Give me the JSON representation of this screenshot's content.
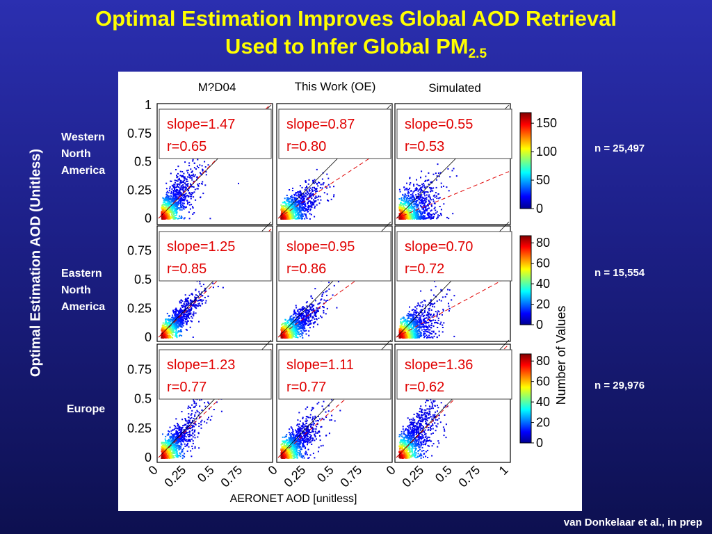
{
  "title": {
    "line1": "Optimal Estimation Improves Global AOD Retrieval",
    "line2_main": "Used to Infer Global PM",
    "line2_sub": "2.5"
  },
  "ylabel": "Optimal Estimation AOD (Unitless)",
  "colorbar_label": "Number of Values",
  "credit": "van Donkelaar et al., in prep",
  "accent_color": "#ffff00",
  "chart_data": {
    "type": "scatter",
    "title": "",
    "columns": [
      "M?D04",
      "This Work (OE)",
      "Simulated"
    ],
    "xlabel": "AERONET AOD [unitless]",
    "ylabel": "Optimal Estimation AOD (Unitless)",
    "xlim": [
      0,
      1
    ],
    "ylim": [
      0,
      1
    ],
    "x_ticks": [
      "0",
      "0.25",
      "0.5",
      "0.75"
    ],
    "x_ticks_last": "1",
    "rows": [
      {
        "region": [
          "Western",
          "North",
          "America"
        ],
        "n": "n = 25,497",
        "y_ticks": [
          "0",
          "0.25",
          "0.5",
          "0.75",
          "1"
        ],
        "colorbar_ticks": [
          "0",
          "50",
          "100",
          "150"
        ],
        "colorbar_max": 150,
        "panels": [
          {
            "slope": 1.47,
            "r": 0.65,
            "slope_label": "slope=1.47",
            "r_label": "r=0.65"
          },
          {
            "slope": 0.87,
            "r": 0.8,
            "slope_label": "slope=0.87",
            "r_label": "r=0.80"
          },
          {
            "slope": 0.55,
            "r": 0.53,
            "slope_label": "slope=0.55",
            "r_label": "r=0.53"
          }
        ]
      },
      {
        "region": [
          "Eastern",
          "North",
          "America"
        ],
        "n": "n = 15,554",
        "y_ticks": [
          "0",
          "0.25",
          "0.5",
          "0.75"
        ],
        "colorbar_ticks": [
          "0",
          "20",
          "40",
          "60",
          "80"
        ],
        "colorbar_max": 80,
        "panels": [
          {
            "slope": 1.25,
            "r": 0.85,
            "slope_label": "slope=1.25",
            "r_label": "r=0.85"
          },
          {
            "slope": 0.95,
            "r": 0.86,
            "slope_label": "slope=0.95",
            "r_label": "r=0.86"
          },
          {
            "slope": 0.7,
            "r": 0.72,
            "slope_label": "slope=0.70",
            "r_label": "r=0.72"
          }
        ]
      },
      {
        "region": [
          "Europe"
        ],
        "n": "n = 29,976",
        "y_ticks": [
          "0",
          "0.25",
          "0.5",
          "0.75"
        ],
        "colorbar_ticks": [
          "0",
          "20",
          "40",
          "60",
          "80"
        ],
        "colorbar_max": 80,
        "panels": [
          {
            "slope": 1.23,
            "r": 0.77,
            "slope_label": "slope=1.23",
            "r_label": "r=0.77"
          },
          {
            "slope": 1.11,
            "r": 0.77,
            "slope_label": "slope=1.11",
            "r_label": "r=0.77"
          },
          {
            "slope": 1.36,
            "r": 0.62,
            "slope_label": "slope=1.36",
            "r_label": "r=0.62"
          }
        ]
      }
    ]
  }
}
